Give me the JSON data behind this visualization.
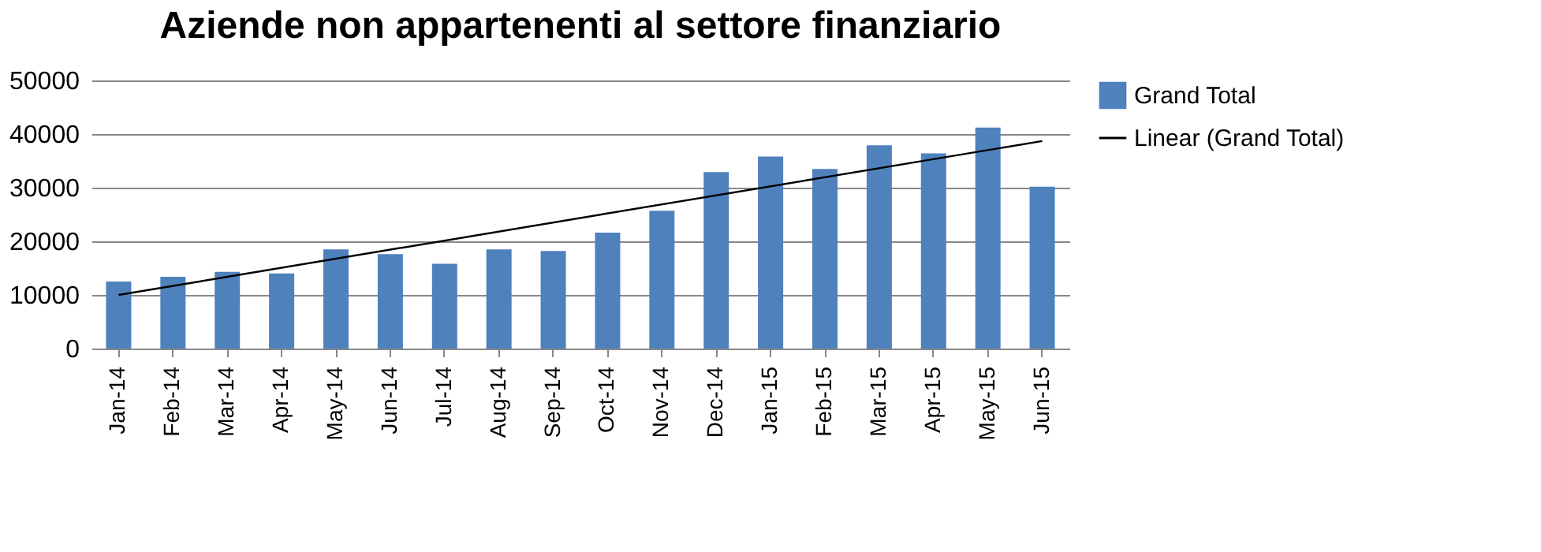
{
  "chart_data": {
    "type": "bar",
    "title": "Aziende non appartenenti al settore finanziario",
    "categories": [
      "Jan-14",
      "Feb-14",
      "Mar-14",
      "Apr-14",
      "May-14",
      "Jun-14",
      "Jul-14",
      "Aug-14",
      "Sep-14",
      "Oct-14",
      "Nov-14",
      "Dec-14",
      "Jan-15",
      "Feb-15",
      "Mar-15",
      "Apr-15",
      "May-15",
      "Jun-15"
    ],
    "series": [
      {
        "name": "Grand Total",
        "color": "#4f81bd",
        "values": [
          12500,
          13400,
          14300,
          14000,
          18500,
          17600,
          15800,
          18500,
          18200,
          21600,
          25700,
          32900,
          35800,
          33500,
          37900,
          36400,
          41200,
          30200
        ]
      },
      {
        "name": "Linear (Grand Total)",
        "type": "line",
        "color": "#000000",
        "x": [
          "Jan-14",
          "Jun-15"
        ],
        "values": [
          10000,
          38700
        ]
      }
    ],
    "ylim": [
      0,
      50000
    ],
    "yticks": [
      0,
      10000,
      20000,
      30000,
      40000,
      50000
    ],
    "grid": "y",
    "legend": "right",
    "marker": "none",
    "line_style": "solid"
  }
}
